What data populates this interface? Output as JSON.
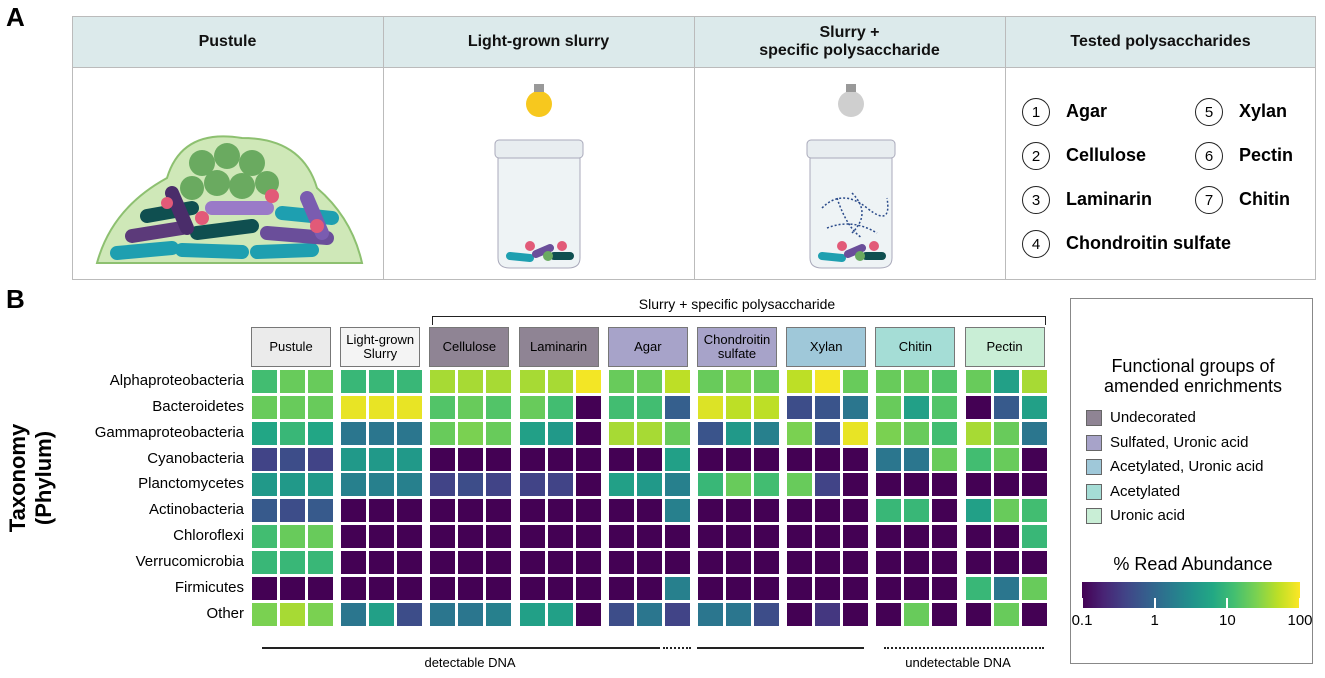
{
  "panel_a": {
    "label": "A",
    "headers": [
      "Pustule",
      "Light-grown slurry",
      "Slurry +\nspecific polysaccharide",
      "Tested polysaccharides"
    ],
    "polysaccharides": [
      {
        "number": 1,
        "name": "Agar"
      },
      {
        "number": 2,
        "name": "Cellulose"
      },
      {
        "number": 3,
        "name": "Laminarin"
      },
      {
        "number": 4,
        "name": "Chondroitin sulfate"
      },
      {
        "number": 5,
        "name": "Xylan"
      },
      {
        "number": 6,
        "name": "Pectin"
      },
      {
        "number": 7,
        "name": "Chitin"
      }
    ]
  },
  "chart_data": {
    "type": "heatmap",
    "panel_label": "B",
    "ylabel": "Taxonomy (Phylum)",
    "bracket_label": "Slurry + specific polysaccharide",
    "rows": [
      "Alphaproteobacteria",
      "Bacteroidetes",
      "Gammaproteobacteria",
      "Cyanobacteria",
      "Planctomycetes",
      "Actinobacteria",
      "Chloroflexi",
      "Verrucomicrobia",
      "Firmicutes",
      "Other"
    ],
    "groups": [
      {
        "name": "Pustule",
        "color": "#ebebeb"
      },
      {
        "name": "Light-grown Slurry",
        "color": "#f4f4f4"
      },
      {
        "name": "Cellulose",
        "color": "#8f8494"
      },
      {
        "name": "Laminarin",
        "color": "#8f8494"
      },
      {
        "name": "Agar",
        "color": "#a7a3c9"
      },
      {
        "name": "Chondroitin sulfate",
        "color": "#a7a3c9"
      },
      {
        "name": "Xylan",
        "color": "#9fc8d9"
      },
      {
        "name": "Chitin",
        "color": "#a5ddd6"
      },
      {
        "name": "Pectin",
        "color": "#c9eed6"
      }
    ],
    "replicates": 3,
    "values": [
      [
        12,
        20,
        20,
        10,
        10,
        10,
        40,
        40,
        40,
        40,
        40,
        90,
        20,
        20,
        50,
        20,
        25,
        20,
        50,
        90,
        20,
        20,
        20,
        15,
        20,
        5,
        40
      ],
      [
        20,
        20,
        20,
        80,
        80,
        80,
        15,
        20,
        15,
        20,
        12,
        0.1,
        12,
        12,
        0.8,
        70,
        50,
        50,
        0.5,
        0.6,
        1.5,
        20,
        5,
        15,
        0.1,
        0.7,
        5
      ],
      [
        6,
        10,
        6,
        1.5,
        1.5,
        1.5,
        20,
        25,
        20,
        5,
        4,
        0.1,
        40,
        40,
        20,
        0.6,
        4,
        2,
        25,
        0.6,
        80,
        25,
        20,
        12,
        40,
        20,
        1.5
      ],
      [
        0.4,
        0.5,
        0.4,
        4,
        4,
        4,
        0.1,
        0.1,
        0.1,
        0.1,
        0.1,
        0.1,
        0.1,
        0.1,
        5,
        0.1,
        0.1,
        0.1,
        0.1,
        0.1,
        0.1,
        1.5,
        1.5,
        20,
        12,
        20,
        0.1
      ],
      [
        4,
        4,
        4,
        2,
        2,
        2,
        0.4,
        0.5,
        0.4,
        0.4,
        0.4,
        0.1,
        5,
        4,
        2,
        10,
        20,
        12,
        20,
        0.4,
        0.1,
        0.1,
        0.1,
        0.1,
        0.1,
        0.1,
        0.1
      ],
      [
        0.7,
        0.5,
        0.7,
        0.1,
        0.1,
        0.1,
        0.1,
        0.1,
        0.1,
        0.1,
        0.1,
        0.1,
        0.1,
        0.1,
        2,
        0.1,
        0.1,
        0.1,
        0.1,
        0.1,
        0.1,
        10,
        10,
        0.1,
        5,
        20,
        12
      ],
      [
        12,
        20,
        20,
        0.1,
        0.1,
        0.1,
        0.1,
        0.1,
        0.1,
        0.1,
        0.1,
        0.1,
        0.1,
        0.1,
        0.1,
        0.1,
        0.1,
        0.1,
        0.1,
        0.1,
        0.1,
        0.1,
        0.1,
        0.1,
        0.1,
        0.1,
        10
      ],
      [
        10,
        10,
        10,
        0.1,
        0.1,
        0.1,
        0.1,
        0.1,
        0.1,
        0.1,
        0.1,
        0.1,
        0.1,
        0.1,
        0.1,
        0.1,
        0.1,
        0.1,
        0.1,
        0.1,
        0.1,
        0.1,
        0.1,
        0.1,
        0.1,
        0.1,
        0.1
      ],
      [
        0.1,
        0.1,
        0.1,
        0.1,
        0.1,
        0.1,
        0.1,
        0.1,
        0.1,
        0.1,
        0.1,
        0.1,
        0.1,
        0.1,
        2,
        0.1,
        0.1,
        0.1,
        0.1,
        0.1,
        0.1,
        0.1,
        0.1,
        0.1,
        10,
        1.5,
        20
      ],
      [
        25,
        40,
        25,
        1.5,
        5,
        0.5,
        1.5,
        1.5,
        2,
        5,
        5,
        0.1,
        0.5,
        1.5,
        0.4,
        1.5,
        1.5,
        0.5,
        0.1,
        0.3,
        0.1,
        0.1,
        20,
        0.1,
        0.1,
        20,
        0.1
      ]
    ],
    "zscale": "log",
    "colormap": "viridis",
    "zlim": [
      0.1,
      100
    ],
    "zticks": [
      0.1,
      1,
      10,
      100
    ],
    "colorbar_title": "% Read Abundance",
    "legend_title": "Functional groups of amended enrichments",
    "functional_groups": [
      {
        "name": "Undecorated",
        "color": "#8f8494"
      },
      {
        "name": "Sulfated, Uronic acid",
        "color": "#a7a3c9"
      },
      {
        "name": "Acetylated, Uronic acid",
        "color": "#9fc8d9"
      },
      {
        "name": "Acetylated",
        "color": "#a5ddd6"
      },
      {
        "name": "Uronic acid",
        "color": "#c9eed6"
      }
    ],
    "footnotes": [
      "detectable DNA",
      "undetectable DNA"
    ]
  }
}
